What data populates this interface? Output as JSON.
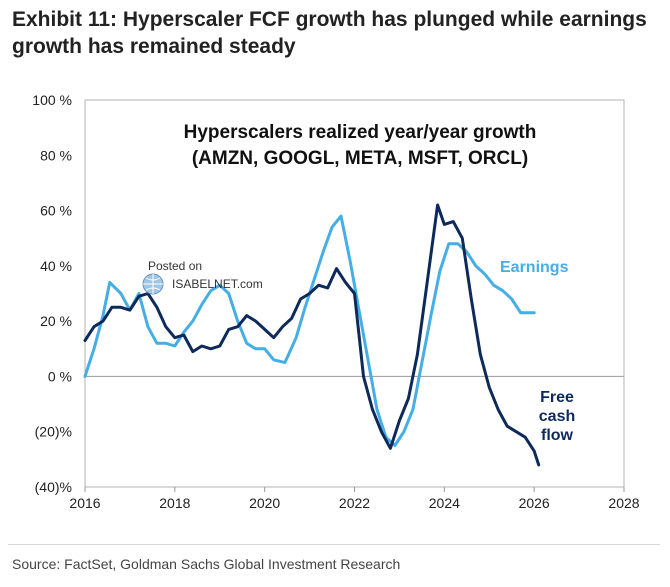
{
  "exhibit": {
    "title": "Exhibit 11: Hyperscaler FCF growth has plunged while earnings growth has remained steady"
  },
  "source": "Source: FactSet, Goldman Sachs Global Investment Research",
  "watermark": {
    "line1": "Posted on",
    "line2": "ISABELNET.com"
  },
  "chart_data": {
    "type": "line",
    "title": "Hyperscalers realized year/year growth",
    "subtitle": "(AMZN, GOOGL, META, MSFT, ORCL)",
    "xlim": [
      2016,
      2028
    ],
    "ylim": [
      -40,
      100
    ],
    "x_ticks": [
      2016,
      2018,
      2020,
      2022,
      2024,
      2026,
      2028
    ],
    "x_tick_labels": [
      "2016",
      "2018",
      "2020",
      "2022",
      "2024",
      "2026",
      "2028"
    ],
    "y_ticks": [
      100,
      80,
      60,
      40,
      20,
      0,
      -20,
      -40
    ],
    "y_tick_labels": [
      "100 %",
      "80 %",
      "60 %",
      "40 %",
      "20 %",
      "0 %",
      "(20)%",
      "(40)%"
    ],
    "grid": false,
    "zero_line": true,
    "series": [
      {
        "name": "Earnings",
        "color": "#45aee5",
        "points": [
          [
            2016.0,
            0
          ],
          [
            2016.2,
            10
          ],
          [
            2016.4,
            22
          ],
          [
            2016.55,
            34
          ],
          [
            2016.8,
            30
          ],
          [
            2017.0,
            24
          ],
          [
            2017.2,
            30
          ],
          [
            2017.4,
            18
          ],
          [
            2017.6,
            12
          ],
          [
            2017.8,
            12
          ],
          [
            2018.0,
            11
          ],
          [
            2018.2,
            16
          ],
          [
            2018.4,
            20
          ],
          [
            2018.6,
            26
          ],
          [
            2018.8,
            31
          ],
          [
            2019.0,
            33
          ],
          [
            2019.2,
            30
          ],
          [
            2019.4,
            20
          ],
          [
            2019.6,
            12
          ],
          [
            2019.8,
            10
          ],
          [
            2020.0,
            10
          ],
          [
            2020.2,
            6
          ],
          [
            2020.45,
            5
          ],
          [
            2020.7,
            14
          ],
          [
            2020.9,
            25
          ],
          [
            2021.1,
            35
          ],
          [
            2021.3,
            45
          ],
          [
            2021.5,
            54
          ],
          [
            2021.7,
            58
          ],
          [
            2021.9,
            42
          ],
          [
            2022.1,
            24
          ],
          [
            2022.3,
            6
          ],
          [
            2022.5,
            -12
          ],
          [
            2022.7,
            -22
          ],
          [
            2022.9,
            -25
          ],
          [
            2023.1,
            -20
          ],
          [
            2023.3,
            -12
          ],
          [
            2023.5,
            5
          ],
          [
            2023.7,
            22
          ],
          [
            2023.9,
            38
          ],
          [
            2024.1,
            48
          ],
          [
            2024.3,
            48
          ],
          [
            2024.5,
            45
          ],
          [
            2024.7,
            40
          ],
          [
            2024.9,
            37
          ],
          [
            2025.1,
            33
          ],
          [
            2025.3,
            31
          ],
          [
            2025.5,
            28
          ],
          [
            2025.7,
            23
          ],
          [
            2025.9,
            23
          ],
          [
            2026.0,
            23
          ]
        ]
      },
      {
        "name": "Free cash flow",
        "color": "#0d2a5a",
        "points": [
          [
            2016.0,
            13
          ],
          [
            2016.2,
            18
          ],
          [
            2016.4,
            20
          ],
          [
            2016.6,
            25
          ],
          [
            2016.8,
            25
          ],
          [
            2017.0,
            24
          ],
          [
            2017.2,
            29
          ],
          [
            2017.4,
            30
          ],
          [
            2017.6,
            25
          ],
          [
            2017.8,
            18
          ],
          [
            2018.0,
            14
          ],
          [
            2018.2,
            15
          ],
          [
            2018.4,
            9
          ],
          [
            2018.6,
            11
          ],
          [
            2018.8,
            10
          ],
          [
            2019.0,
            11
          ],
          [
            2019.2,
            17
          ],
          [
            2019.4,
            18
          ],
          [
            2019.6,
            22
          ],
          [
            2019.8,
            20
          ],
          [
            2020.0,
            17
          ],
          [
            2020.2,
            14
          ],
          [
            2020.4,
            18
          ],
          [
            2020.6,
            21
          ],
          [
            2020.8,
            28
          ],
          [
            2021.0,
            30
          ],
          [
            2021.2,
            33
          ],
          [
            2021.4,
            32
          ],
          [
            2021.6,
            39
          ],
          [
            2021.8,
            34
          ],
          [
            2022.0,
            30
          ],
          [
            2022.2,
            0
          ],
          [
            2022.4,
            -12
          ],
          [
            2022.6,
            -20
          ],
          [
            2022.8,
            -26
          ],
          [
            2023.0,
            -16
          ],
          [
            2023.2,
            -8
          ],
          [
            2023.4,
            8
          ],
          [
            2023.6,
            32
          ],
          [
            2023.85,
            62
          ],
          [
            2024.0,
            55
          ],
          [
            2024.2,
            56
          ],
          [
            2024.4,
            50
          ],
          [
            2024.6,
            28
          ],
          [
            2024.8,
            8
          ],
          [
            2025.0,
            -4
          ],
          [
            2025.2,
            -12
          ],
          [
            2025.4,
            -18
          ],
          [
            2025.6,
            -20
          ],
          [
            2025.8,
            -22
          ],
          [
            2026.0,
            -27
          ],
          [
            2026.1,
            -32
          ]
        ]
      }
    ],
    "annotations": [
      {
        "text": "Earnings",
        "color": "#45aee5"
      },
      {
        "text_lines": [
          "Free",
          "cash",
          "flow"
        ],
        "color": "#0d2a5a"
      }
    ]
  }
}
